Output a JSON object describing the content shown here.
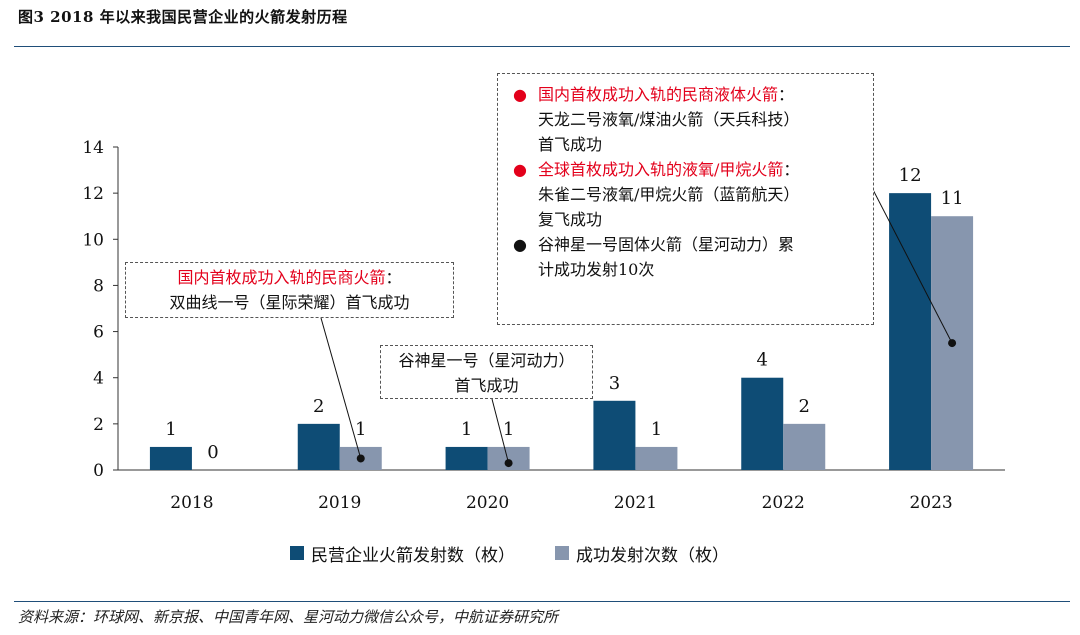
{
  "figure": {
    "title": "图3  2018 年以来我国民营企业的火箭发射历程",
    "source": "资料来源：环球网、新京报、中国青年网、星河动力微信公众号，中航证券研究所"
  },
  "colors": {
    "launches": "#0e4c75",
    "successes": "#8796ae",
    "accent": "#e3001b",
    "rule": "#1f4e79"
  },
  "chart_data": {
    "type": "bar",
    "categories": [
      "2018",
      "2019",
      "2020",
      "2021",
      "2022",
      "2023"
    ],
    "series": [
      {
        "name": "民营企业火箭发射数（枚）",
        "values": [
          1,
          2,
          1,
          3,
          4,
          12
        ]
      },
      {
        "name": "成功发射次数（枚）",
        "values": [
          0,
          1,
          1,
          1,
          2,
          11
        ]
      }
    ],
    "ylim": [
      0,
      14
    ],
    "yticks": [
      0,
      2,
      4,
      6,
      8,
      10,
      12,
      14
    ],
    "grid": false,
    "legend": "bottom",
    "data_labels": true
  },
  "annotations": {
    "a2019": {
      "highlight": "国内首枚成功入轨的民商火箭",
      "colon": "：",
      "line2": "双曲线一号（星际荣耀）首飞成功"
    },
    "a2020": {
      "line1": "谷神星一号（星河动力）",
      "line2": "首飞成功"
    },
    "a2023": {
      "item1": {
        "highlight": "国内首枚成功入轨的民商液体火箭",
        "colon": "：",
        "line2": "天龙二号液氧/煤油火箭（天兵科技）",
        "line3": "首飞成功"
      },
      "item2": {
        "highlight": "全球首枚成功入轨的液氧/甲烷火箭",
        "colon": "：",
        "line2": "朱雀二号液氧/甲烷火箭（蓝箭航天）",
        "line3": "复飞成功"
      },
      "item3": {
        "line1": "谷神星一号固体火箭（星河动力）累",
        "line2": "计成功发射10次"
      }
    }
  }
}
